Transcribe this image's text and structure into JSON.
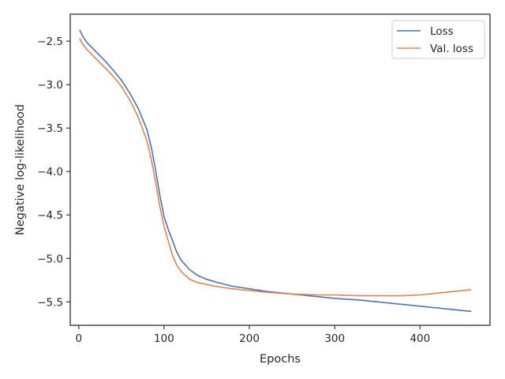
{
  "chart_data": {
    "type": "line",
    "title": "",
    "xlabel": "Epochs",
    "ylabel": "Negative log-likelihood",
    "xlim": [
      -10,
      482
    ],
    "ylim": [
      -5.77,
      -2.19
    ],
    "xticks": [
      0,
      100,
      200,
      300,
      400
    ],
    "yticks": [
      -2.5,
      -3.0,
      -3.5,
      -4.0,
      -4.5,
      -5.0,
      -5.5
    ],
    "xtick_labels": [
      "0",
      "100",
      "200",
      "300",
      "400"
    ],
    "ytick_labels": [
      "−2.5",
      "−3.0",
      "−3.5",
      "−4.0",
      "−4.5",
      "−5.0",
      "−5.5"
    ],
    "grid": false,
    "legend_position": "top-right",
    "series": [
      {
        "name": "Loss",
        "color": "#4c72b0",
        "x": [
          1,
          5,
          10,
          20,
          30,
          40,
          50,
          60,
          70,
          80,
          85,
          90,
          95,
          100,
          105,
          110,
          115,
          120,
          130,
          140,
          150,
          160,
          180,
          200,
          220,
          250,
          280,
          300,
          330,
          360,
          380,
          400,
          420,
          440,
          460
        ],
        "y": [
          -2.37,
          -2.45,
          -2.52,
          -2.62,
          -2.72,
          -2.83,
          -2.95,
          -3.1,
          -3.28,
          -3.52,
          -3.72,
          -3.98,
          -4.27,
          -4.52,
          -4.67,
          -4.8,
          -4.93,
          -5.02,
          -5.13,
          -5.2,
          -5.24,
          -5.27,
          -5.32,
          -5.35,
          -5.38,
          -5.41,
          -5.44,
          -5.46,
          -5.48,
          -5.51,
          -5.53,
          -5.55,
          -5.57,
          -5.59,
          -5.61
        ]
      },
      {
        "name": "Val. loss",
        "color": "#dd8452",
        "x": [
          1,
          5,
          10,
          20,
          30,
          40,
          50,
          60,
          70,
          80,
          85,
          90,
          95,
          100,
          105,
          110,
          115,
          120,
          130,
          140,
          150,
          160,
          180,
          200,
          220,
          250,
          280,
          300,
          330,
          360,
          380,
          400,
          420,
          440,
          460
        ],
        "y": [
          -2.47,
          -2.54,
          -2.6,
          -2.7,
          -2.8,
          -2.9,
          -3.02,
          -3.18,
          -3.38,
          -3.65,
          -3.86,
          -4.12,
          -4.4,
          -4.63,
          -4.8,
          -4.97,
          -5.08,
          -5.15,
          -5.24,
          -5.28,
          -5.3,
          -5.32,
          -5.35,
          -5.37,
          -5.39,
          -5.41,
          -5.42,
          -5.42,
          -5.43,
          -5.43,
          -5.43,
          -5.42,
          -5.4,
          -5.38,
          -5.36
        ]
      }
    ]
  }
}
